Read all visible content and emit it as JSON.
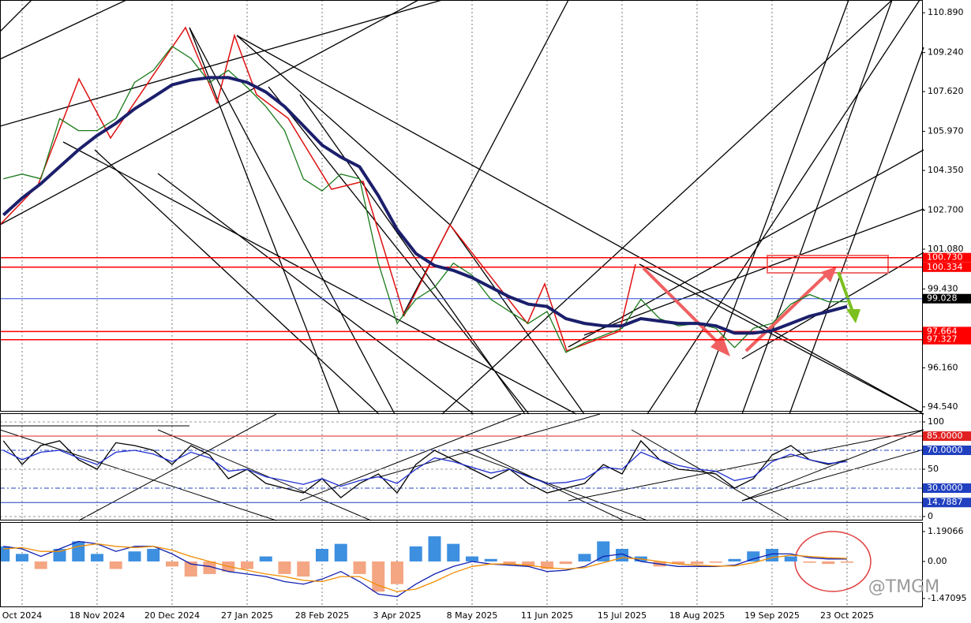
{
  "chart_data": [
    {
      "type": "line",
      "categories": [
        null,
        "Oct 2024",
        null,
        null,
        null,
        "18 Nov 2024",
        null,
        null,
        null,
        "20 Dec 2024",
        null,
        null,
        null,
        "27 Jan 2025",
        null,
        null,
        null,
        "28 Feb 2025",
        null,
        null,
        null,
        "3 Apr 2025",
        null,
        null,
        null,
        "8 May 2025",
        null,
        null,
        null,
        "11 Jun 2025",
        null,
        null,
        null,
        "15 Jul 2025",
        null,
        null,
        null,
        "18 Aug 2025",
        null,
        null,
        null,
        "19 Sep 2025",
        null,
        null,
        null,
        "23 Oct 2025"
      ],
      "series": [
        {
          "color": "#1a7a1a",
          "values": [
            104.0,
            104.2,
            104.0,
            106.5,
            106.0,
            106.0,
            106.5,
            108.0,
            108.5,
            109.5,
            109.0,
            108.0,
            108.5,
            107.8,
            107.0,
            106.0,
            104.0,
            103.5,
            104.2,
            104.0,
            100.5,
            98.0,
            99.0,
            99.5,
            100.5,
            100.0,
            99.0,
            98.5,
            98.0,
            98.5,
            96.8,
            97.2,
            97.5,
            97.8,
            99.0,
            98.2,
            97.9,
            98.0,
            97.8,
            97.0,
            97.8,
            98.0,
            98.8,
            99.2,
            98.9,
            98.9
          ]
        },
        {
          "color": "#1b1f6b",
          "values": [
            102.5,
            103.2,
            103.8,
            104.5,
            105.2,
            105.8,
            106.3,
            106.9,
            107.4,
            107.9,
            108.1,
            108.2,
            108.2,
            108.0,
            107.6,
            107.0,
            106.2,
            105.4,
            104.9,
            104.5,
            103.3,
            101.9,
            100.9,
            100.4,
            100.2,
            99.9,
            99.5,
            99.1,
            98.8,
            98.7,
            98.2,
            98.0,
            97.9,
            97.9,
            98.2,
            98.1,
            98.0,
            98.0,
            97.9,
            97.6,
            97.6,
            97.7,
            98.0,
            98.3,
            98.5,
            98.7
          ]
        }
      ],
      "ylim": [
        94.34,
        111.42
      ],
      "yticks": [
        {
          "value": 110.89,
          "label": "110.890"
        },
        {
          "value": 109.24,
          "label": "109.240"
        },
        {
          "value": 107.62,
          "label": "107.620"
        },
        {
          "value": 105.97,
          "label": "105.970"
        },
        {
          "value": 104.35,
          "label": "104.350"
        },
        {
          "value": 102.7,
          "label": "102.700"
        },
        {
          "value": 101.08,
          "label": "101.080"
        },
        {
          "value": 99.43,
          "label": "99.430"
        },
        {
          "value": 96.16,
          "label": "96.160"
        },
        {
          "value": 94.54,
          "label": "94.540"
        }
      ],
      "levels": [
        {
          "value": 100.73,
          "label": "100.730",
          "color": "#ff0000"
        },
        {
          "value": 100.334,
          "label": "100.334",
          "color": "#ff0000"
        },
        {
          "value": 99.028,
          "label": "99.028",
          "color": "#2a4fd8"
        },
        {
          "value": 97.664,
          "label": "97.664",
          "color": "#ff0000"
        },
        {
          "value": 97.327,
          "label": "97.327",
          "color": "#ff0000"
        }
      ],
      "watermark": "@TMGM"
    },
    {
      "type": "line",
      "series": [
        {
          "color": "#000000",
          "values": [
            80,
            55,
            75,
            80,
            60,
            50,
            78,
            75,
            70,
            55,
            75,
            65,
            40,
            50,
            35,
            30,
            25,
            40,
            20,
            35,
            45,
            25,
            55,
            70,
            60,
            50,
            40,
            50,
            35,
            25,
            30,
            35,
            55,
            45,
            80,
            60,
            50,
            48,
            45,
            30,
            40,
            65,
            75,
            60,
            55,
            60
          ]
        },
        {
          "color": "#2030d0",
          "values": [
            70,
            60,
            68,
            70,
            62,
            55,
            68,
            70,
            66,
            58,
            68,
            62,
            48,
            50,
            42,
            38,
            34,
            40,
            32,
            38,
            42,
            35,
            50,
            62,
            58,
            52,
            46,
            50,
            42,
            35,
            36,
            40,
            52,
            50,
            68,
            60,
            54,
            50,
            48,
            38,
            42,
            58,
            66,
            60,
            56,
            58
          ]
        }
      ],
      "ylim": [
        -4.2,
        109.2
      ],
      "yticks": [
        100,
        50,
        0
      ],
      "levels": [
        {
          "value": 85,
          "label": "85.0000",
          "color": "#e02020"
        },
        {
          "value": 70,
          "label": "70.0000",
          "color": "#2040c0"
        },
        {
          "value": 30,
          "label": "30.0000",
          "color": "#2040c0"
        },
        {
          "value": 14.7887,
          "label": "14.7887",
          "color": "#2040c0"
        }
      ]
    },
    {
      "type": "bar",
      "series": [
        {
          "type": "bar",
          "color": "#3d8fe0",
          "color_negative": "#f4a582",
          "values": [
            0.6,
            0.3,
            -0.3,
            0.5,
            0.8,
            0.3,
            -0.3,
            0.4,
            0.5,
            -0.2,
            -0.6,
            -0.5,
            -0.4,
            -0.3,
            0.2,
            -0.5,
            -0.6,
            0.5,
            0.7,
            -0.5,
            -1.2,
            -0.9,
            0.6,
            1.0,
            0.7,
            0.2,
            0.1,
            -0.1,
            -0.2,
            -0.3,
            -0.1,
            0.3,
            0.8,
            0.5,
            0.2,
            -0.2,
            -0.1,
            -0.1,
            -0.05,
            0.1,
            0.4,
            0.5,
            0.2,
            -0.05,
            -0.1,
            -0.05
          ]
        },
        {
          "type": "line",
          "color": "#1020b0",
          "values": [
            0.6,
            0.5,
            0.2,
            0.5,
            0.8,
            0.7,
            0.4,
            0.6,
            0.6,
            0.3,
            -0.1,
            -0.2,
            -0.4,
            -0.5,
            -0.6,
            -0.8,
            -0.9,
            -0.7,
            -0.4,
            -0.8,
            -1.3,
            -1.4,
            -0.9,
            -0.5,
            -0.2,
            0.0,
            -0.1,
            -0.15,
            -0.2,
            -0.4,
            -0.35,
            -0.2,
            0.2,
            0.3,
            0.0,
            -0.1,
            -0.2,
            -0.2,
            -0.2,
            -0.15,
            0.1,
            0.3,
            0.3,
            0.15,
            0.1,
            0.1
          ]
        },
        {
          "type": "line",
          "color": "#f08c00",
          "values": [
            0.5,
            0.55,
            0.4,
            0.4,
            0.6,
            0.7,
            0.6,
            0.55,
            0.6,
            0.45,
            0.2,
            0.0,
            -0.2,
            -0.35,
            -0.5,
            -0.6,
            -0.75,
            -0.8,
            -0.6,
            -0.6,
            -0.95,
            -1.2,
            -1.1,
            -0.8,
            -0.45,
            -0.2,
            -0.1,
            -0.1,
            -0.15,
            -0.25,
            -0.3,
            -0.25,
            -0.05,
            0.15,
            0.1,
            0.0,
            -0.1,
            -0.15,
            -0.18,
            -0.18,
            -0.05,
            0.15,
            0.25,
            0.2,
            0.15,
            0.12
          ]
        }
      ],
      "ylim": [
        -1.82,
        1.567
      ],
      "yticks": [
        {
          "value": 1.19066,
          "label": "1.19066"
        },
        {
          "value": 0,
          "label": "0.00"
        },
        {
          "value": -1.47095,
          "label": "-1.47095"
        }
      ]
    }
  ]
}
